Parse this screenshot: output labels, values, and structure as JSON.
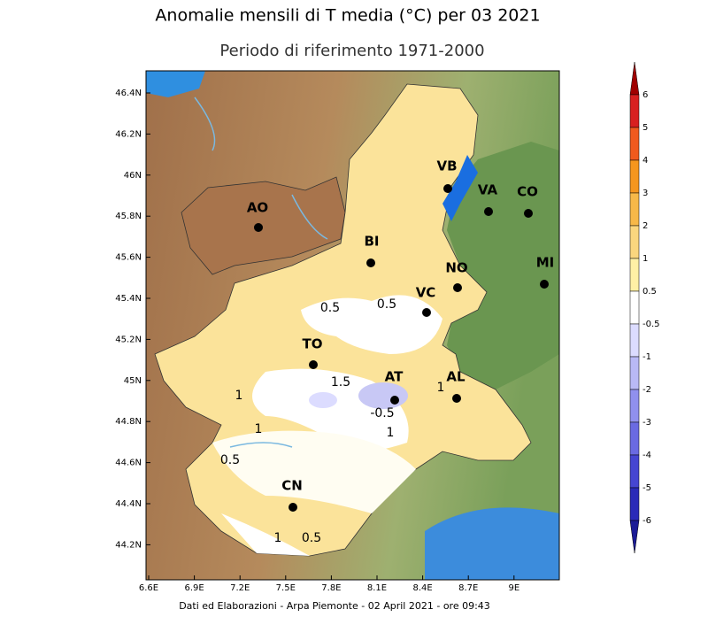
{
  "header": {
    "title": "Anomalie mensili di T media (°C) per 03 2021",
    "subtitle": "Periodo di riferimento 1971-2000"
  },
  "axes": {
    "lon_labels": [
      "6.6E",
      "6.9E",
      "7.2E",
      "7.5E",
      "7.8E",
      "8.1E",
      "8.4E",
      "8.7E",
      "9E"
    ],
    "lat_labels": [
      "46.4N",
      "46.2N",
      "46N",
      "45.8N",
      "45.6N",
      "45.4N",
      "45.2N",
      "45N",
      "44.8N",
      "44.6N",
      "44.4N",
      "44.2N"
    ]
  },
  "cities": [
    "VB",
    "VA",
    "CO",
    "AO",
    "BI",
    "NO",
    "MI",
    "VC",
    "TO",
    "AT",
    "AL",
    "CN"
  ],
  "contour_labels": [
    "0.5",
    "0.5",
    "1",
    "1.5",
    "-0.5",
    "1",
    "1",
    "1",
    "0.5",
    "1",
    "0.5"
  ],
  "colorbar": {
    "labels": [
      "6",
      "5",
      "4",
      "3",
      "2",
      "1",
      "0.5",
      "-0.5",
      "-1",
      "-2",
      "-3",
      "-4",
      "-5",
      "-6"
    ],
    "colors": [
      "#a00000",
      "#d82020",
      "#f05a1e",
      "#f5961e",
      "#f7b848",
      "#fad67e",
      "#fff0a5",
      "#ffffff",
      "#dcdcff",
      "#b9b9f5",
      "#9090ee",
      "#6a6ae2",
      "#4646d2",
      "#2a2ab8",
      "#1c1c96"
    ]
  },
  "footer": "Dati ed Elaborazioni - Arpa Piemonte - 02 April 2021 - ore 09:43"
}
